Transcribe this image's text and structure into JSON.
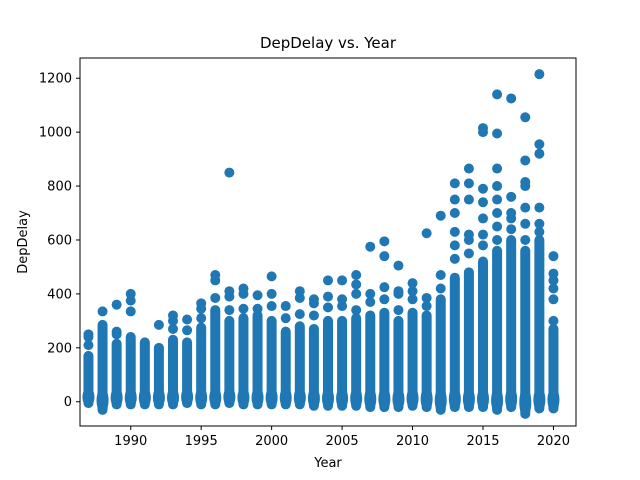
{
  "chart_data": {
    "type": "scatter",
    "title": "DepDelay vs. Year",
    "xlabel": "Year",
    "ylabel": "DepDelay",
    "xlim": [
      1986.4,
      2021.6
    ],
    "ylim": [
      -90,
      1275
    ],
    "xticks": [
      1990,
      1995,
      2000,
      2005,
      2010,
      2015,
      2020
    ],
    "yticks": [
      0,
      200,
      400,
      600,
      800,
      1000,
      1200
    ],
    "grid": false,
    "legend": "none",
    "marker_color": "#1f77b4",
    "columns": [
      {
        "year": 1987,
        "min": -5,
        "max": 170,
        "outliers": [
          210,
          240,
          250
        ]
      },
      {
        "year": 1988,
        "min": -30,
        "max": 285,
        "outliers": [
          335
        ]
      },
      {
        "year": 1989,
        "min": -10,
        "max": 215,
        "outliers": [
          250,
          260,
          360
        ]
      },
      {
        "year": 1990,
        "min": -10,
        "max": 240,
        "outliers": [
          335,
          375,
          400
        ]
      },
      {
        "year": 1991,
        "min": -10,
        "max": 220,
        "outliers": []
      },
      {
        "year": 1992,
        "min": -10,
        "max": 200,
        "outliers": [
          285
        ]
      },
      {
        "year": 1993,
        "min": -10,
        "max": 230,
        "outliers": [
          270,
          300,
          320
        ]
      },
      {
        "year": 1994,
        "min": -5,
        "max": 220,
        "outliers": [
          265,
          305
        ]
      },
      {
        "year": 1995,
        "min": -10,
        "max": 275,
        "outliers": [
          310,
          345,
          365
        ]
      },
      {
        "year": 1996,
        "min": -10,
        "max": 340,
        "outliers": [
          385,
          450,
          470
        ]
      },
      {
        "year": 1997,
        "min": -5,
        "max": 300,
        "outliers": [
          340,
          390,
          410,
          850
        ]
      },
      {
        "year": 1998,
        "min": -10,
        "max": 310,
        "outliers": [
          345,
          400,
          420
        ]
      },
      {
        "year": 1999,
        "min": -10,
        "max": 320,
        "outliers": [
          345,
          395
        ]
      },
      {
        "year": 2000,
        "min": -10,
        "max": 300,
        "outliers": [
          355,
          400,
          465
        ]
      },
      {
        "year": 2001,
        "min": -10,
        "max": 260,
        "outliers": [
          310,
          355
        ]
      },
      {
        "year": 2002,
        "min": -10,
        "max": 280,
        "outliers": [
          325,
          385,
          410
        ]
      },
      {
        "year": 2003,
        "min": -15,
        "max": 270,
        "outliers": [
          320,
          365,
          380
        ]
      },
      {
        "year": 2004,
        "min": -15,
        "max": 300,
        "outliers": [
          350,
          390,
          450
        ]
      },
      {
        "year": 2005,
        "min": -15,
        "max": 300,
        "outliers": [
          355,
          380,
          450
        ]
      },
      {
        "year": 2006,
        "min": -15,
        "max": 310,
        "outliers": [
          340,
          400,
          435,
          470
        ]
      },
      {
        "year": 2007,
        "min": -20,
        "max": 320,
        "outliers": [
          370,
          400,
          575
        ]
      },
      {
        "year": 2008,
        "min": -20,
        "max": 330,
        "outliers": [
          380,
          425,
          540,
          595
        ]
      },
      {
        "year": 2009,
        "min": -20,
        "max": 300,
        "outliers": [
          340,
          400,
          410,
          505
        ]
      },
      {
        "year": 2010,
        "min": -15,
        "max": 330,
        "outliers": [
          380,
          410,
          440
        ]
      },
      {
        "year": 2011,
        "min": -20,
        "max": 320,
        "outliers": [
          355,
          385,
          625
        ]
      },
      {
        "year": 2012,
        "min": -30,
        "max": 380,
        "outliers": [
          420,
          470,
          690
        ]
      },
      {
        "year": 2013,
        "min": -20,
        "max": 460,
        "outliers": [
          530,
          580,
          630,
          700,
          750,
          810
        ]
      },
      {
        "year": 2014,
        "min": -20,
        "max": 480,
        "outliers": [
          550,
          600,
          620,
          750,
          810,
          865
        ]
      },
      {
        "year": 2015,
        "min": -20,
        "max": 520,
        "outliers": [
          580,
          620,
          680,
          740,
          790,
          1000,
          1015
        ]
      },
      {
        "year": 2016,
        "min": -30,
        "max": 560,
        "outliers": [
          600,
          650,
          700,
          750,
          800,
          865,
          995,
          1140
        ]
      },
      {
        "year": 2017,
        "min": -20,
        "max": 600,
        "outliers": [
          640,
          680,
          700,
          760,
          1125
        ]
      },
      {
        "year": 2018,
        "min": -45,
        "max": 560,
        "outliers": [
          600,
          660,
          720,
          800,
          815,
          895,
          1055
        ]
      },
      {
        "year": 2019,
        "min": -25,
        "max": 600,
        "outliers": [
          630,
          660,
          720,
          920,
          955,
          1215
        ]
      },
      {
        "year": 2020,
        "min": -25,
        "max": 270,
        "outliers": [
          300,
          380,
          420,
          450,
          475,
          540
        ]
      }
    ]
  }
}
